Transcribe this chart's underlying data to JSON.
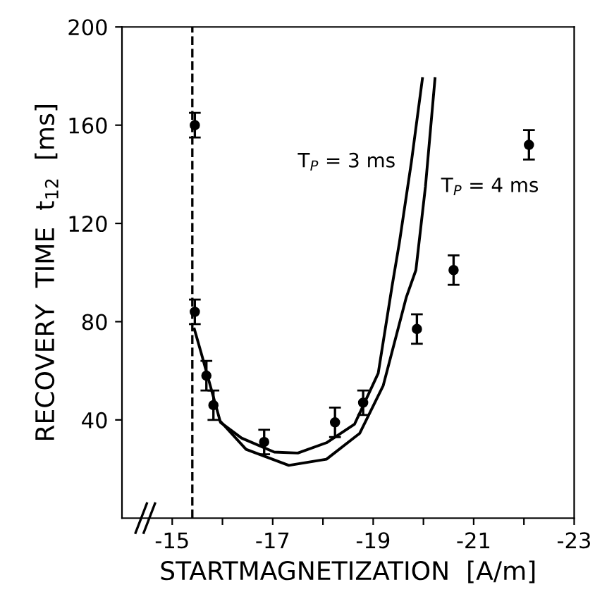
{
  "chart_data": {
    "type": "scatter",
    "xlabel": "STARTMAGNETIZATION  [A/m]",
    "ylabel": "RECOVERY  TIME  t$_{12}$  [ms]",
    "xlim": [
      -14,
      -23
    ],
    "ylim": [
      0,
      200
    ],
    "xticks": [
      -15,
      {
        "value": -16,
        "label": null
      },
      -17,
      {
        "value": -18,
        "label": null
      },
      -19,
      {
        "value": -20,
        "label": null
      },
      -21,
      {
        "value": -22,
        "label": null
      },
      -23
    ],
    "yticks": [
      40,
      80,
      120,
      160,
      200
    ],
    "grid": false,
    "legend": false,
    "ref_lines": [
      {
        "axis": "x",
        "value": -15.4,
        "line_style": "dashed",
        "color": "#000000"
      }
    ],
    "series": [
      {
        "color": "#000000",
        "marker": "circle",
        "x": [
          -15.45,
          -15.45,
          -15.68,
          -15.82,
          -16.83,
          -18.24,
          -18.8,
          -19.87,
          -20.6,
          -22.1
        ],
        "values": [
          160,
          84,
          58,
          46,
          31,
          39,
          47,
          77,
          101,
          152
        ],
        "errors": [
          5,
          5,
          6,
          6,
          5,
          6,
          5,
          6,
          6,
          6
        ]
      },
      {
        "type": "line",
        "color": "#000000",
        "marker": "none",
        "line_style": "solid",
        "x": [
          -15.44,
          -15.58,
          -15.96,
          -16.38,
          -17.03,
          -17.5,
          -18.07,
          -18.63,
          -19.1,
          -19.38,
          -19.52,
          -19.76,
          -19.98
        ],
        "values": [
          77,
          67,
          39,
          32.6,
          26.9,
          26.5,
          30.7,
          38.3,
          59,
          95,
          112,
          145,
          179
        ]
      },
      {
        "type": "line",
        "color": "#000000",
        "marker": "none",
        "line_style": "solid",
        "x": [
          -15.96,
          -16.47,
          -17.32,
          -18.07,
          -18.73,
          -19.2,
          -19.66,
          -19.85,
          -20.04,
          -20.23
        ],
        "values": [
          39.4,
          28,
          21.5,
          24,
          34.5,
          54,
          90,
          101,
          135,
          179
        ]
      }
    ],
    "annotations": [
      "T$_{P}$ = 3 ms",
      "T$_{P}$ = 4 ms"
    ]
  }
}
